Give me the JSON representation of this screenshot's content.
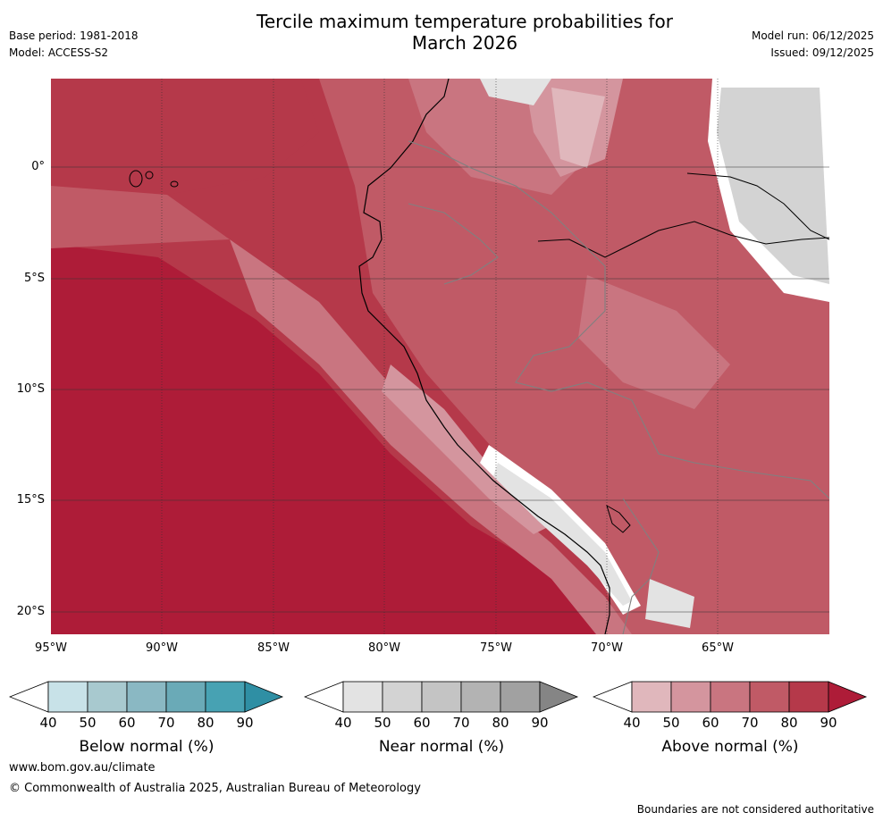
{
  "title": {
    "line1": "Tercile maximum temperature probabilities for",
    "line2": "March 2026"
  },
  "header_left": {
    "base_period": "Base period: 1981-2018",
    "model": "Model: ACCESS-S2"
  },
  "header_right": {
    "model_run": "Model run: 06/12/2025",
    "issued": "Issued: 09/12/2025"
  },
  "map": {
    "latitude_labels": [
      "0°",
      "5°S",
      "10°S",
      "15°S",
      "20°S"
    ],
    "longitude_labels": [
      "95°W",
      "90°W",
      "85°W",
      "80°W",
      "75°W",
      "70°W",
      "65°W"
    ]
  },
  "colorbars": [
    {
      "title": "Below normal (%)",
      "ticks": [
        "40",
        "50",
        "60",
        "70",
        "80",
        "90"
      ],
      "colors": [
        "#ffffff",
        "#c8e2e8",
        "#a8c9cf",
        "#8ab8c3",
        "#6aaab7",
        "#47a2b3",
        "#2f8fa4"
      ]
    },
    {
      "title": "Near normal (%)",
      "ticks": [
        "40",
        "50",
        "60",
        "70",
        "80",
        "90"
      ],
      "colors": [
        "#ffffff",
        "#e3e3e3",
        "#d3d3d3",
        "#c4c4c4",
        "#b3b3b3",
        "#a1a1a1",
        "#858585"
      ]
    },
    {
      "title": "Above normal (%)",
      "ticks": [
        "40",
        "50",
        "60",
        "70",
        "80",
        "90"
      ],
      "colors": [
        "#ffffff",
        "#e0b7bc",
        "#d4959e",
        "#c97580",
        "#c05a66",
        "#b5394a",
        "#ae1c38"
      ]
    }
  ],
  "footer": {
    "url": "www.bom.gov.au/climate",
    "copyright": "© Commonwealth of Australia 2025, Australian Bureau of Meteorology",
    "note": "Boundaries are not considered authoritative"
  }
}
